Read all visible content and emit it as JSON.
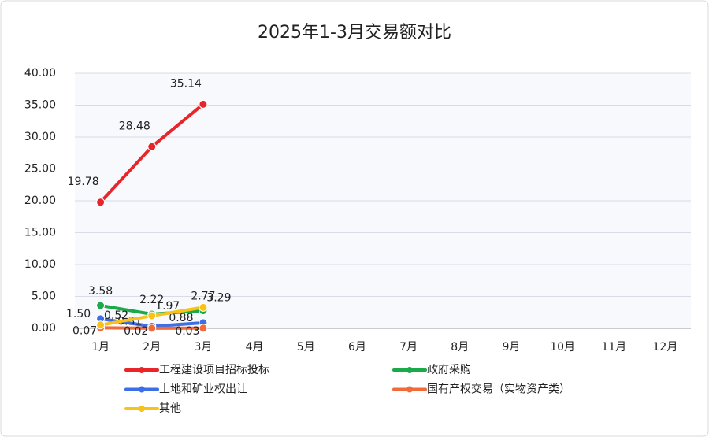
{
  "chart_data": {
    "type": "line",
    "title": "2025年1-3月交易额对比",
    "categories": [
      "1月",
      "2月",
      "3月",
      "4月",
      "5月",
      "6月",
      "7月",
      "8月",
      "9月",
      "10月",
      "11月",
      "12月"
    ],
    "series": [
      {
        "name": "工程建设项目招标投标",
        "color": "#e8262a",
        "values": [
          19.78,
          28.48,
          35.14,
          null,
          null,
          null,
          null,
          null,
          null,
          null,
          null,
          null
        ]
      },
      {
        "name": "政府采购",
        "color": "#1aaa4a",
        "values": [
          3.58,
          2.22,
          2.77,
          null,
          null,
          null,
          null,
          null,
          null,
          null,
          null,
          null
        ]
      },
      {
        "name": "土地和矿业权出让",
        "color": "#3c6ee8",
        "values": [
          1.5,
          0.31,
          0.88,
          null,
          null,
          null,
          null,
          null,
          null,
          null,
          null,
          null
        ],
        "value_labels": [
          "1.50",
          "0.31",
          "0.88",
          null,
          null,
          null,
          null,
          null,
          null,
          null,
          null,
          null
        ]
      },
      {
        "name": "国有产权交易（实物资产类）",
        "color": "#f06a3a",
        "values": [
          0.07,
          0.02,
          0.03,
          null,
          null,
          null,
          null,
          null,
          null,
          null,
          null,
          null
        ]
      },
      {
        "name": "其他",
        "color": "#f9c21a",
        "values": [
          0.52,
          1.97,
          3.29,
          null,
          null,
          null,
          null,
          null,
          null,
          null,
          null,
          null
        ]
      }
    ],
    "ylim": [
      0,
      40
    ],
    "yticks": [
      {
        "value": 0,
        "label": "0.00"
      },
      {
        "value": 5,
        "label": "5.00"
      },
      {
        "value": 10,
        "label": "10.00"
      },
      {
        "value": 15,
        "label": "15.00"
      },
      {
        "value": 20,
        "label": "20.00"
      },
      {
        "value": 25,
        "label": "25.00"
      },
      {
        "value": 30,
        "label": "30.00"
      },
      {
        "value": 35,
        "label": "35.00"
      },
      {
        "value": 40,
        "label": "40.00"
      }
    ],
    "grid": true
  }
}
